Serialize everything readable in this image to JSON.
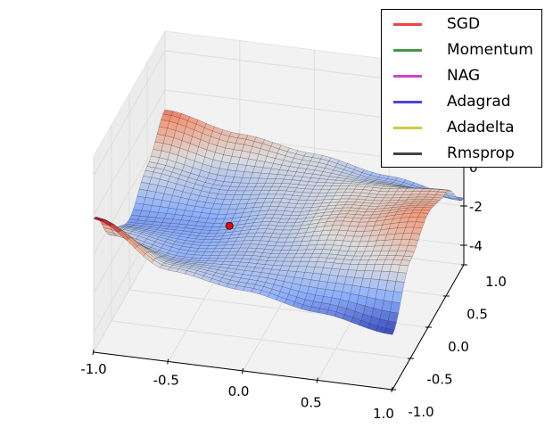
{
  "chart_data": {
    "type": "surface3d",
    "x_ticks": [
      "-1.0",
      "-0.5",
      "0.0",
      "0.5",
      "1.0"
    ],
    "y_ticks": [
      "-1.0",
      "-0.5",
      "0.0",
      "0.5",
      "1.0"
    ],
    "z_ticks": [
      "-4",
      "-2",
      "0"
    ],
    "x_tick_values": [
      -1,
      -0.5,
      0,
      0.5,
      1
    ],
    "y_tick_values": [
      -1,
      -0.5,
      0,
      0.5,
      1
    ],
    "z_tick_values": [
      -4,
      -2,
      0
    ],
    "xlim": [
      -1,
      1
    ],
    "ylim": [
      -1,
      1
    ],
    "zlim": [
      -5,
      5
    ],
    "colormap": "coolwarm",
    "surface_grid": {
      "x": [
        -1,
        -0.5,
        0,
        0.5,
        1
      ],
      "y": [
        -1,
        -0.5,
        0,
        0.5,
        1
      ],
      "z": [
        [
          1.8,
          -0.5,
          -1.4,
          -0.3,
          1.0
        ],
        [
          -0.35,
          -1.11,
          -1.3,
          -0.81,
          0.25
        ],
        [
          -0.9,
          -0.75,
          -0.6,
          -0.45,
          -0.3
        ],
        [
          -1.55,
          -0.39,
          0.1,
          -0.09,
          -0.95
        ],
        [
          -2.2,
          -0.02,
          0.8,
          0.28,
          -1.6
        ]
      ]
    },
    "marker": {
      "x": -0.33,
      "y": 0,
      "z": -1.1,
      "color": "#ff0000"
    },
    "legend_position": "top-right",
    "legend": [
      {
        "name": "SGD",
        "color": "#ee4444"
      },
      {
        "name": "Momentum",
        "color": "#449944"
      },
      {
        "name": "NAG",
        "color": "#cc44cc"
      },
      {
        "name": "Adagrad",
        "color": "#4444ee"
      },
      {
        "name": "Adadelta",
        "color": "#cccc44"
      },
      {
        "name": "Rmsprop",
        "color": "#444444"
      }
    ]
  }
}
